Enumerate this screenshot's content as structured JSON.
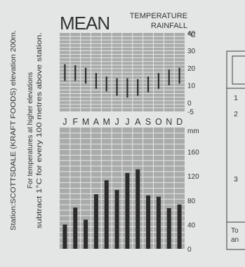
{
  "header": {
    "big_title": "MEAN",
    "subtitle_line1": "TEMPERATURE",
    "subtitle_line2": "RAINFALL"
  },
  "station_note": {
    "line1": "Station:SCOTTSDALE (KRAFT FOODS) elevation 200m.",
    "line2": "For temperatures at higher elevations",
    "line3": "subtract 1°C for every 100 metres above station."
  },
  "side_table": {
    "row_labels": [
      "1",
      "2",
      "3"
    ],
    "footer_line1": "To",
    "footer_line2": "an"
  },
  "colors": {
    "grid_fill": "#a9abaa",
    "grid_line": "#e6e7e6",
    "bar": "#2b2b2b",
    "background": "#e4e6e5"
  },
  "chart_data": [
    {
      "type": "range",
      "title": "TEMPERATURE",
      "unit": "°C",
      "categories": [
        "J",
        "F",
        "M",
        "A",
        "M",
        "J",
        "J",
        "A",
        "S",
        "O",
        "N",
        "D"
      ],
      "low": [
        12.5,
        12.5,
        11,
        8,
        6.5,
        4,
        3,
        4,
        6,
        8,
        10,
        11
      ],
      "high": [
        22,
        21.5,
        20,
        17,
        15,
        14,
        14,
        13.5,
        15,
        17,
        19,
        20
      ],
      "ylim": [
        -5,
        40
      ],
      "yticks": [
        -5,
        0,
        10,
        20,
        30,
        40
      ]
    },
    {
      "type": "bar",
      "title": "RAINFALL",
      "unit": "mm",
      "categories": [
        "J",
        "F",
        "M",
        "A",
        "M",
        "J",
        "J",
        "A",
        "S",
        "O",
        "N",
        "D"
      ],
      "values": [
        40,
        68,
        48,
        90,
        113,
        97,
        125,
        131,
        88,
        86,
        67,
        73
      ],
      "ylim": [
        0,
        200
      ],
      "yticks": [
        0,
        40,
        80,
        120,
        160
      ]
    }
  ]
}
